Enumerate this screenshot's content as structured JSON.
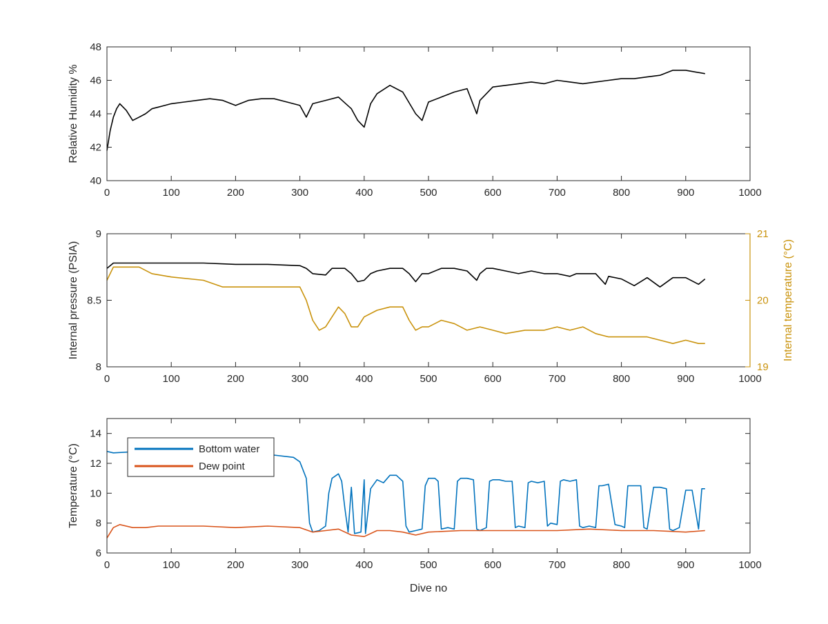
{
  "chart_data": [
    {
      "type": "line",
      "xlabel": "",
      "ylabel": "Relative Humidity %",
      "xlim": [
        0,
        1000
      ],
      "ylim": [
        40,
        48
      ],
      "x_ticks": [
        "0",
        "100",
        "200",
        "300",
        "400",
        "500",
        "600",
        "700",
        "800",
        "900",
        "1000"
      ],
      "y_ticks": [
        "40",
        "42",
        "44",
        "46",
        "48"
      ],
      "series": [
        {
          "color": "#000000",
          "axis": "left",
          "x": [
            0,
            5,
            10,
            15,
            20,
            30,
            40,
            50,
            60,
            70,
            80,
            90,
            100,
            120,
            140,
            160,
            180,
            200,
            220,
            240,
            260,
            280,
            300,
            310,
            320,
            340,
            360,
            380,
            390,
            400,
            410,
            420,
            440,
            460,
            480,
            490,
            500,
            520,
            540,
            560,
            575,
            580,
            600,
            620,
            640,
            660,
            680,
            700,
            720,
            740,
            760,
            780,
            800,
            820,
            840,
            860,
            880,
            900,
            915,
            930
          ],
          "values": [
            41.8,
            43.0,
            43.8,
            44.3,
            44.6,
            44.2,
            43.6,
            43.8,
            44.0,
            44.3,
            44.4,
            44.5,
            44.6,
            44.7,
            44.8,
            44.9,
            44.8,
            44.5,
            44.8,
            44.9,
            44.9,
            44.7,
            44.5,
            43.8,
            44.6,
            44.8,
            45.0,
            44.3,
            43.6,
            43.2,
            44.6,
            45.2,
            45.7,
            45.3,
            44.0,
            43.6,
            44.7,
            45.0,
            45.3,
            45.5,
            44.0,
            44.8,
            45.6,
            45.7,
            45.8,
            45.9,
            45.8,
            46.0,
            45.9,
            45.8,
            45.9,
            46.0,
            46.1,
            46.1,
            46.2,
            46.3,
            46.6,
            46.6,
            46.5,
            46.4
          ]
        }
      ]
    },
    {
      "type": "line",
      "xlabel": "",
      "ylabel": "Internal pressure (PSIA)",
      "y2label": "Internal temperature (°C)",
      "xlim": [
        0,
        1000
      ],
      "ylim": [
        8,
        9
      ],
      "y2lim": [
        19,
        21
      ],
      "x_ticks": [
        "0",
        "100",
        "200",
        "300",
        "400",
        "500",
        "600",
        "700",
        "800",
        "900",
        "1000"
      ],
      "y_ticks": [
        "8",
        "8.5",
        "9"
      ],
      "y2_ticks": [
        "19",
        "20",
        "21"
      ],
      "series": [
        {
          "color": "#000000",
          "axis": "left",
          "x": [
            0,
            10,
            50,
            100,
            150,
            200,
            250,
            300,
            310,
            320,
            340,
            350,
            370,
            380,
            390,
            400,
            410,
            420,
            440,
            460,
            470,
            480,
            490,
            500,
            520,
            540,
            560,
            575,
            580,
            590,
            600,
            620,
            640,
            660,
            680,
            700,
            720,
            730,
            740,
            760,
            775,
            780,
            800,
            820,
            840,
            860,
            880,
            900,
            920,
            930
          ],
          "values": [
            8.74,
            8.78,
            8.78,
            8.78,
            8.78,
            8.77,
            8.77,
            8.76,
            8.74,
            8.7,
            8.69,
            8.74,
            8.74,
            8.7,
            8.64,
            8.65,
            8.7,
            8.72,
            8.74,
            8.74,
            8.7,
            8.64,
            8.7,
            8.7,
            8.74,
            8.74,
            8.72,
            8.65,
            8.7,
            8.74,
            8.74,
            8.72,
            8.7,
            8.72,
            8.7,
            8.7,
            8.68,
            8.7,
            8.7,
            8.7,
            8.62,
            8.68,
            8.66,
            8.61,
            8.67,
            8.6,
            8.67,
            8.67,
            8.62,
            8.66
          ]
        },
        {
          "color": "#c9920b",
          "axis": "right",
          "x": [
            0,
            10,
            30,
            50,
            70,
            100,
            150,
            180,
            200,
            250,
            280,
            300,
            310,
            320,
            330,
            340,
            350,
            360,
            370,
            380,
            390,
            400,
            420,
            440,
            460,
            470,
            480,
            490,
            500,
            520,
            540,
            560,
            580,
            600,
            620,
            650,
            680,
            700,
            720,
            740,
            760,
            780,
            800,
            820,
            840,
            860,
            880,
            900,
            920,
            930
          ],
          "values": [
            20.3,
            20.5,
            20.5,
            20.5,
            20.4,
            20.35,
            20.3,
            20.2,
            20.2,
            20.2,
            20.2,
            20.2,
            20.0,
            19.7,
            19.55,
            19.6,
            19.75,
            19.9,
            19.8,
            19.6,
            19.6,
            19.75,
            19.85,
            19.9,
            19.9,
            19.7,
            19.55,
            19.6,
            19.6,
            19.7,
            19.65,
            19.55,
            19.6,
            19.55,
            19.5,
            19.55,
            19.55,
            19.6,
            19.55,
            19.6,
            19.5,
            19.45,
            19.45,
            19.45,
            19.45,
            19.4,
            19.35,
            19.4,
            19.35,
            19.35
          ]
        }
      ]
    },
    {
      "type": "line",
      "xlabel": "Dive no",
      "ylabel": "Temperature (°C)",
      "xlim": [
        0,
        1000
      ],
      "ylim": [
        6,
        15
      ],
      "x_ticks": [
        "0",
        "100",
        "200",
        "300",
        "400",
        "500",
        "600",
        "700",
        "800",
        "900",
        "1000"
      ],
      "y_ticks": [
        "6",
        "8",
        "10",
        "12",
        "14"
      ],
      "legend": "top-left",
      "series": [
        {
          "name": "Bottom water",
          "color": "#0072bd",
          "axis": "left",
          "x": [
            0,
            10,
            50,
            100,
            150,
            200,
            250,
            290,
            300,
            310,
            315,
            320,
            330,
            340,
            345,
            350,
            360,
            365,
            370,
            375,
            380,
            385,
            395,
            400,
            402,
            410,
            420,
            430,
            440,
            450,
            460,
            465,
            470,
            480,
            490,
            495,
            500,
            510,
            515,
            520,
            530,
            540,
            545,
            550,
            560,
            570,
            575,
            580,
            590,
            595,
            600,
            610,
            620,
            630,
            635,
            640,
            650,
            655,
            660,
            670,
            680,
            685,
            690,
            700,
            705,
            710,
            720,
            730,
            735,
            740,
            750,
            760,
            765,
            770,
            780,
            790,
            800,
            805,
            810,
            820,
            830,
            835,
            840,
            850,
            860,
            870,
            875,
            880,
            890,
            900,
            910,
            920,
            925,
            930
          ],
          "values": [
            12.8,
            12.7,
            12.8,
            12.8,
            12.8,
            12.8,
            12.6,
            12.4,
            12.1,
            11.0,
            8.0,
            7.4,
            7.5,
            7.8,
            10.0,
            11.0,
            11.3,
            10.8,
            9.0,
            7.4,
            10.4,
            7.3,
            7.4,
            10.9,
            7.3,
            10.3,
            10.9,
            10.7,
            11.2,
            11.2,
            10.8,
            7.8,
            7.4,
            7.5,
            7.6,
            10.5,
            11.0,
            11.0,
            10.8,
            7.6,
            7.7,
            7.6,
            10.8,
            11.0,
            11.0,
            10.9,
            7.6,
            7.5,
            7.7,
            10.8,
            10.9,
            10.9,
            10.8,
            10.8,
            7.7,
            7.8,
            7.7,
            10.7,
            10.8,
            10.7,
            10.8,
            7.8,
            8.0,
            7.9,
            10.8,
            10.9,
            10.8,
            10.9,
            7.8,
            7.7,
            7.8,
            7.7,
            10.5,
            10.5,
            10.6,
            7.9,
            7.8,
            7.7,
            10.5,
            10.5,
            10.5,
            7.7,
            7.6,
            10.4,
            10.4,
            10.3,
            7.6,
            7.5,
            7.7,
            10.2,
            10.2,
            7.6,
            10.3,
            10.3
          ]
        },
        {
          "name": "Dew point",
          "color": "#d95319",
          "axis": "left",
          "x": [
            0,
            10,
            20,
            40,
            60,
            80,
            100,
            150,
            200,
            250,
            300,
            320,
            340,
            360,
            380,
            400,
            420,
            440,
            460,
            480,
            500,
            550,
            600,
            650,
            700,
            750,
            800,
            850,
            900,
            930
          ],
          "values": [
            7.0,
            7.7,
            7.9,
            7.7,
            7.7,
            7.8,
            7.8,
            7.8,
            7.7,
            7.8,
            7.7,
            7.4,
            7.5,
            7.6,
            7.2,
            7.1,
            7.5,
            7.5,
            7.4,
            7.2,
            7.4,
            7.5,
            7.5,
            7.5,
            7.5,
            7.6,
            7.5,
            7.5,
            7.4,
            7.5
          ]
        }
      ]
    }
  ]
}
